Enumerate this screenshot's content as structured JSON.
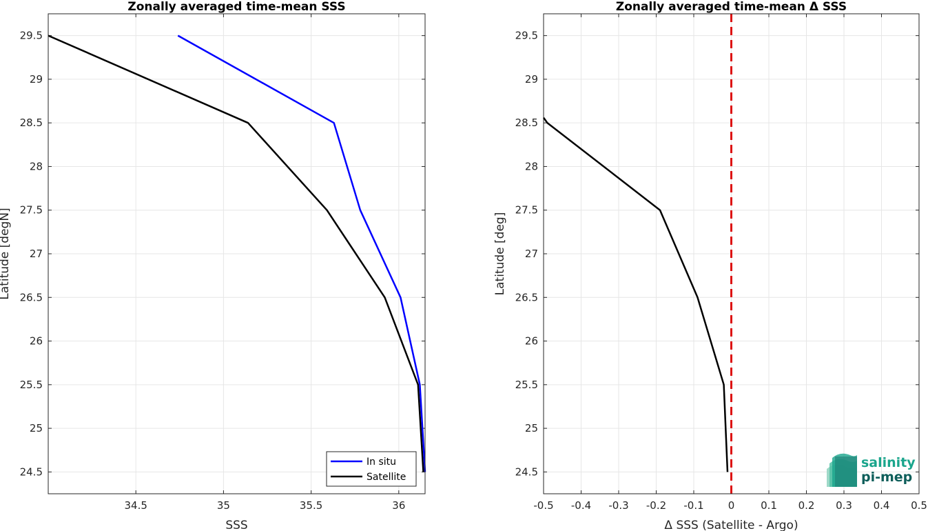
{
  "chart_data": [
    {
      "type": "line",
      "title": "Zonally averaged time-mean SSS",
      "xlabel": "SSS",
      "ylabel": "Latitude [degN]",
      "xlim": [
        34.0,
        36.15
      ],
      "ylim": [
        24.25,
        29.75
      ],
      "xticks": [
        34.5,
        35,
        35.5,
        36
      ],
      "xtick_labels": [
        "34.5",
        "35",
        "35.5",
        "36"
      ],
      "yticks": [
        24.5,
        25,
        25.5,
        26,
        26.5,
        27,
        27.5,
        28,
        28.5,
        29,
        29.5
      ],
      "ytick_labels": [
        "24.5",
        "25",
        "25.5",
        "26",
        "26.5",
        "27",
        "27.5",
        "28",
        "28.5",
        "29",
        "29.5"
      ],
      "grid": true,
      "legend_position": "bottom-right",
      "series": [
        {
          "name": "In situ",
          "color": "#0000ff",
          "x": [
            34.74,
            35.63,
            35.78,
            36.01,
            36.12,
            36.15
          ],
          "y": [
            29.5,
            28.5,
            27.5,
            26.5,
            25.5,
            24.5
          ]
        },
        {
          "name": "Satellite",
          "color": "#000000",
          "x": [
            34.0,
            35.14,
            35.59,
            35.92,
            36.11,
            36.14
          ],
          "y": [
            29.5,
            28.5,
            27.5,
            26.5,
            25.5,
            24.5
          ]
        }
      ]
    },
    {
      "type": "line",
      "title": "Zonally averaged time-mean Δ SSS",
      "xlabel": "Δ SSS (Satellite - Argo)",
      "ylabel": "Latitude [deg]",
      "xlim": [
        -0.5,
        0.5
      ],
      "ylim": [
        24.25,
        29.75
      ],
      "xticks": [
        -0.5,
        -0.4,
        -0.3,
        -0.2,
        -0.1,
        0,
        0.1,
        0.2,
        0.3,
        0.4,
        0.5
      ],
      "xtick_labels": [
        "-0.5",
        "-0.4",
        "-0.3",
        "-0.2",
        "-0.1",
        "0",
        "0.1",
        "0.2",
        "0.3",
        "0.4",
        "0.5"
      ],
      "yticks": [
        24.5,
        25,
        25.5,
        26,
        26.5,
        27,
        27.5,
        28,
        28.5,
        29,
        29.5
      ],
      "ytick_labels": [
        "24.5",
        "25",
        "25.5",
        "26",
        "26.5",
        "27",
        "27.5",
        "28",
        "28.5",
        "29",
        "29.5"
      ],
      "grid": true,
      "reference_line": {
        "x": 0,
        "color": "#dd1111",
        "style": "dashed"
      },
      "series": [
        {
          "color": "#000000",
          "x": [
            -0.5,
            -0.49,
            -0.19,
            -0.09,
            -0.02,
            -0.01
          ],
          "y": [
            28.56,
            28.5,
            27.5,
            26.5,
            25.5,
            24.5
          ]
        }
      ]
    }
  ],
  "logo": {
    "line1": "salinity",
    "line2": "pi-mep",
    "color": "#1aa58c",
    "color_dark": "#0e5e5a"
  }
}
